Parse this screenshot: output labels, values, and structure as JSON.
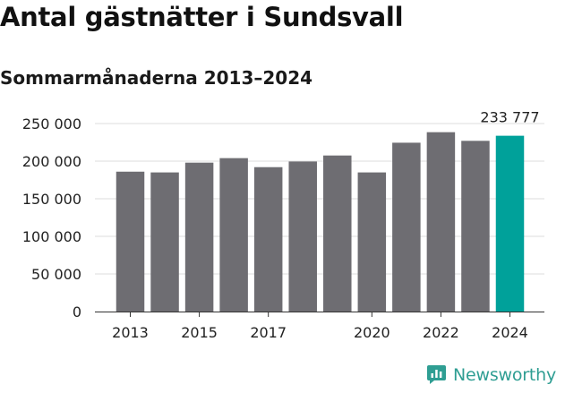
{
  "header": {
    "title": "Antal gästnätter i Sundsvall",
    "subtitle": "Sommarmånaderna 2013–2024"
  },
  "brand": {
    "name": "Newsworthy",
    "color": "#2f9e93"
  },
  "colors": {
    "bar": "#6e6d72",
    "highlight": "#00a19a",
    "grid": "#dcdcdc",
    "axis": "#333333"
  },
  "chart_data": {
    "type": "bar",
    "title": "Antal gästnätter i Sundsvall",
    "subtitle": "Sommarmånaderna 2013–2024",
    "xlabel": "",
    "ylabel": "",
    "categories": [
      "2013",
      "2014",
      "2015",
      "2016",
      "2017",
      "2018",
      "2019",
      "2020",
      "2021",
      "2022",
      "2023",
      "2024"
    ],
    "values": [
      186000,
      185000,
      198000,
      204000,
      192000,
      199500,
      207500,
      185000,
      224500,
      238500,
      227000,
      233777
    ],
    "x_tick_labels": [
      "2013",
      "2015",
      "2017",
      "2020",
      "2022",
      "2024"
    ],
    "y_ticks": [
      0,
      50000,
      100000,
      150000,
      200000,
      250000
    ],
    "y_tick_labels": [
      "0",
      "50 000",
      "100 000",
      "150 000",
      "200 000",
      "250 000"
    ],
    "ylim": [
      0,
      250000
    ],
    "grid": true,
    "highlight_category": "2024",
    "data_label": {
      "category": "2024",
      "text": "233 777"
    }
  }
}
